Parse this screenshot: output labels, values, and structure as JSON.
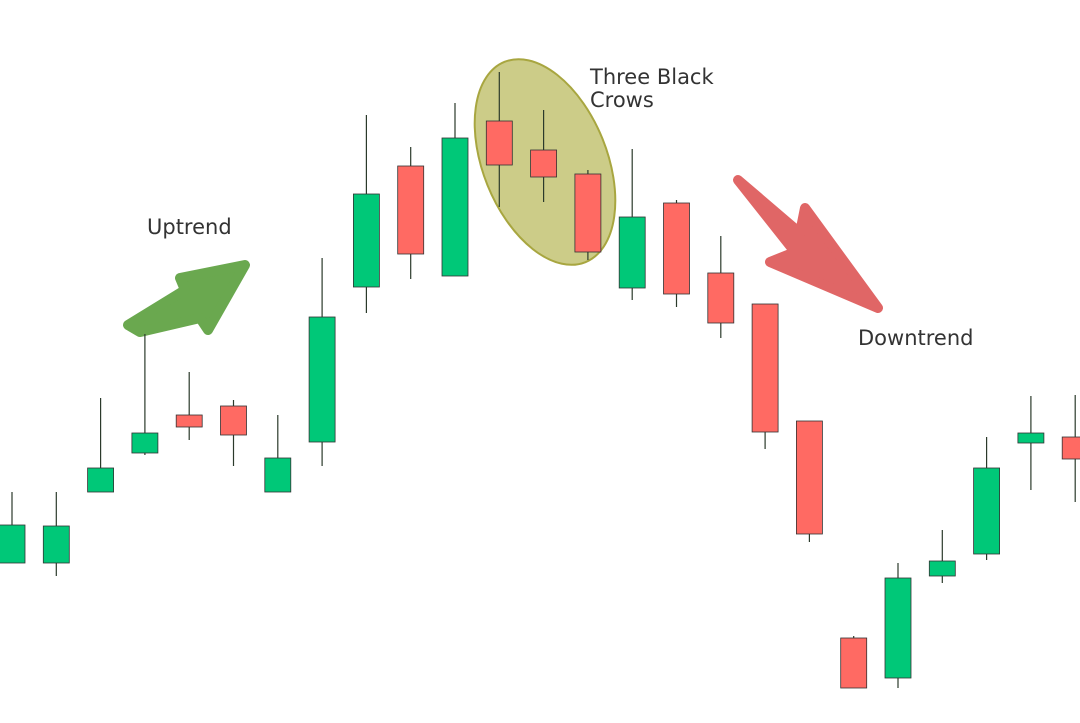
{
  "chart_data": {
    "type": "candlestick",
    "annotations": [
      "Uptrend",
      "Three Black Crows",
      "Downtrend"
    ],
    "up_color": "#00c878",
    "down_color": "#ff6a63",
    "ylim": [
      35,
      723
    ],
    "open": [
      160,
      160,
      231,
      270,
      308,
      317,
      231,
      281,
      436,
      557,
      447,
      602,
      573,
      549,
      435,
      520,
      450,
      419,
      302,
      85,
      45,
      147,
      169,
      280,
      286
    ],
    "high": [
      231,
      231,
      325,
      389,
      351,
      323,
      308,
      465,
      608,
      576,
      620,
      651,
      613,
      553,
      574,
      523,
      487,
      419,
      302,
      87,
      160,
      193,
      286,
      327,
      328
    ],
    "low": [
      160,
      147,
      231,
      268,
      283,
      257,
      231,
      257,
      410,
      444,
      447,
      516,
      521,
      463,
      423,
      416,
      385,
      274,
      181,
      35,
      35,
      140,
      163,
      233,
      221
    ],
    "close": [
      198,
      197,
      255,
      290,
      296,
      288,
      265,
      406,
      529,
      469,
      585,
      558,
      546,
      471,
      506,
      429,
      400,
      291,
      189,
      35,
      145,
      162,
      255,
      290,
      264
    ]
  }
}
